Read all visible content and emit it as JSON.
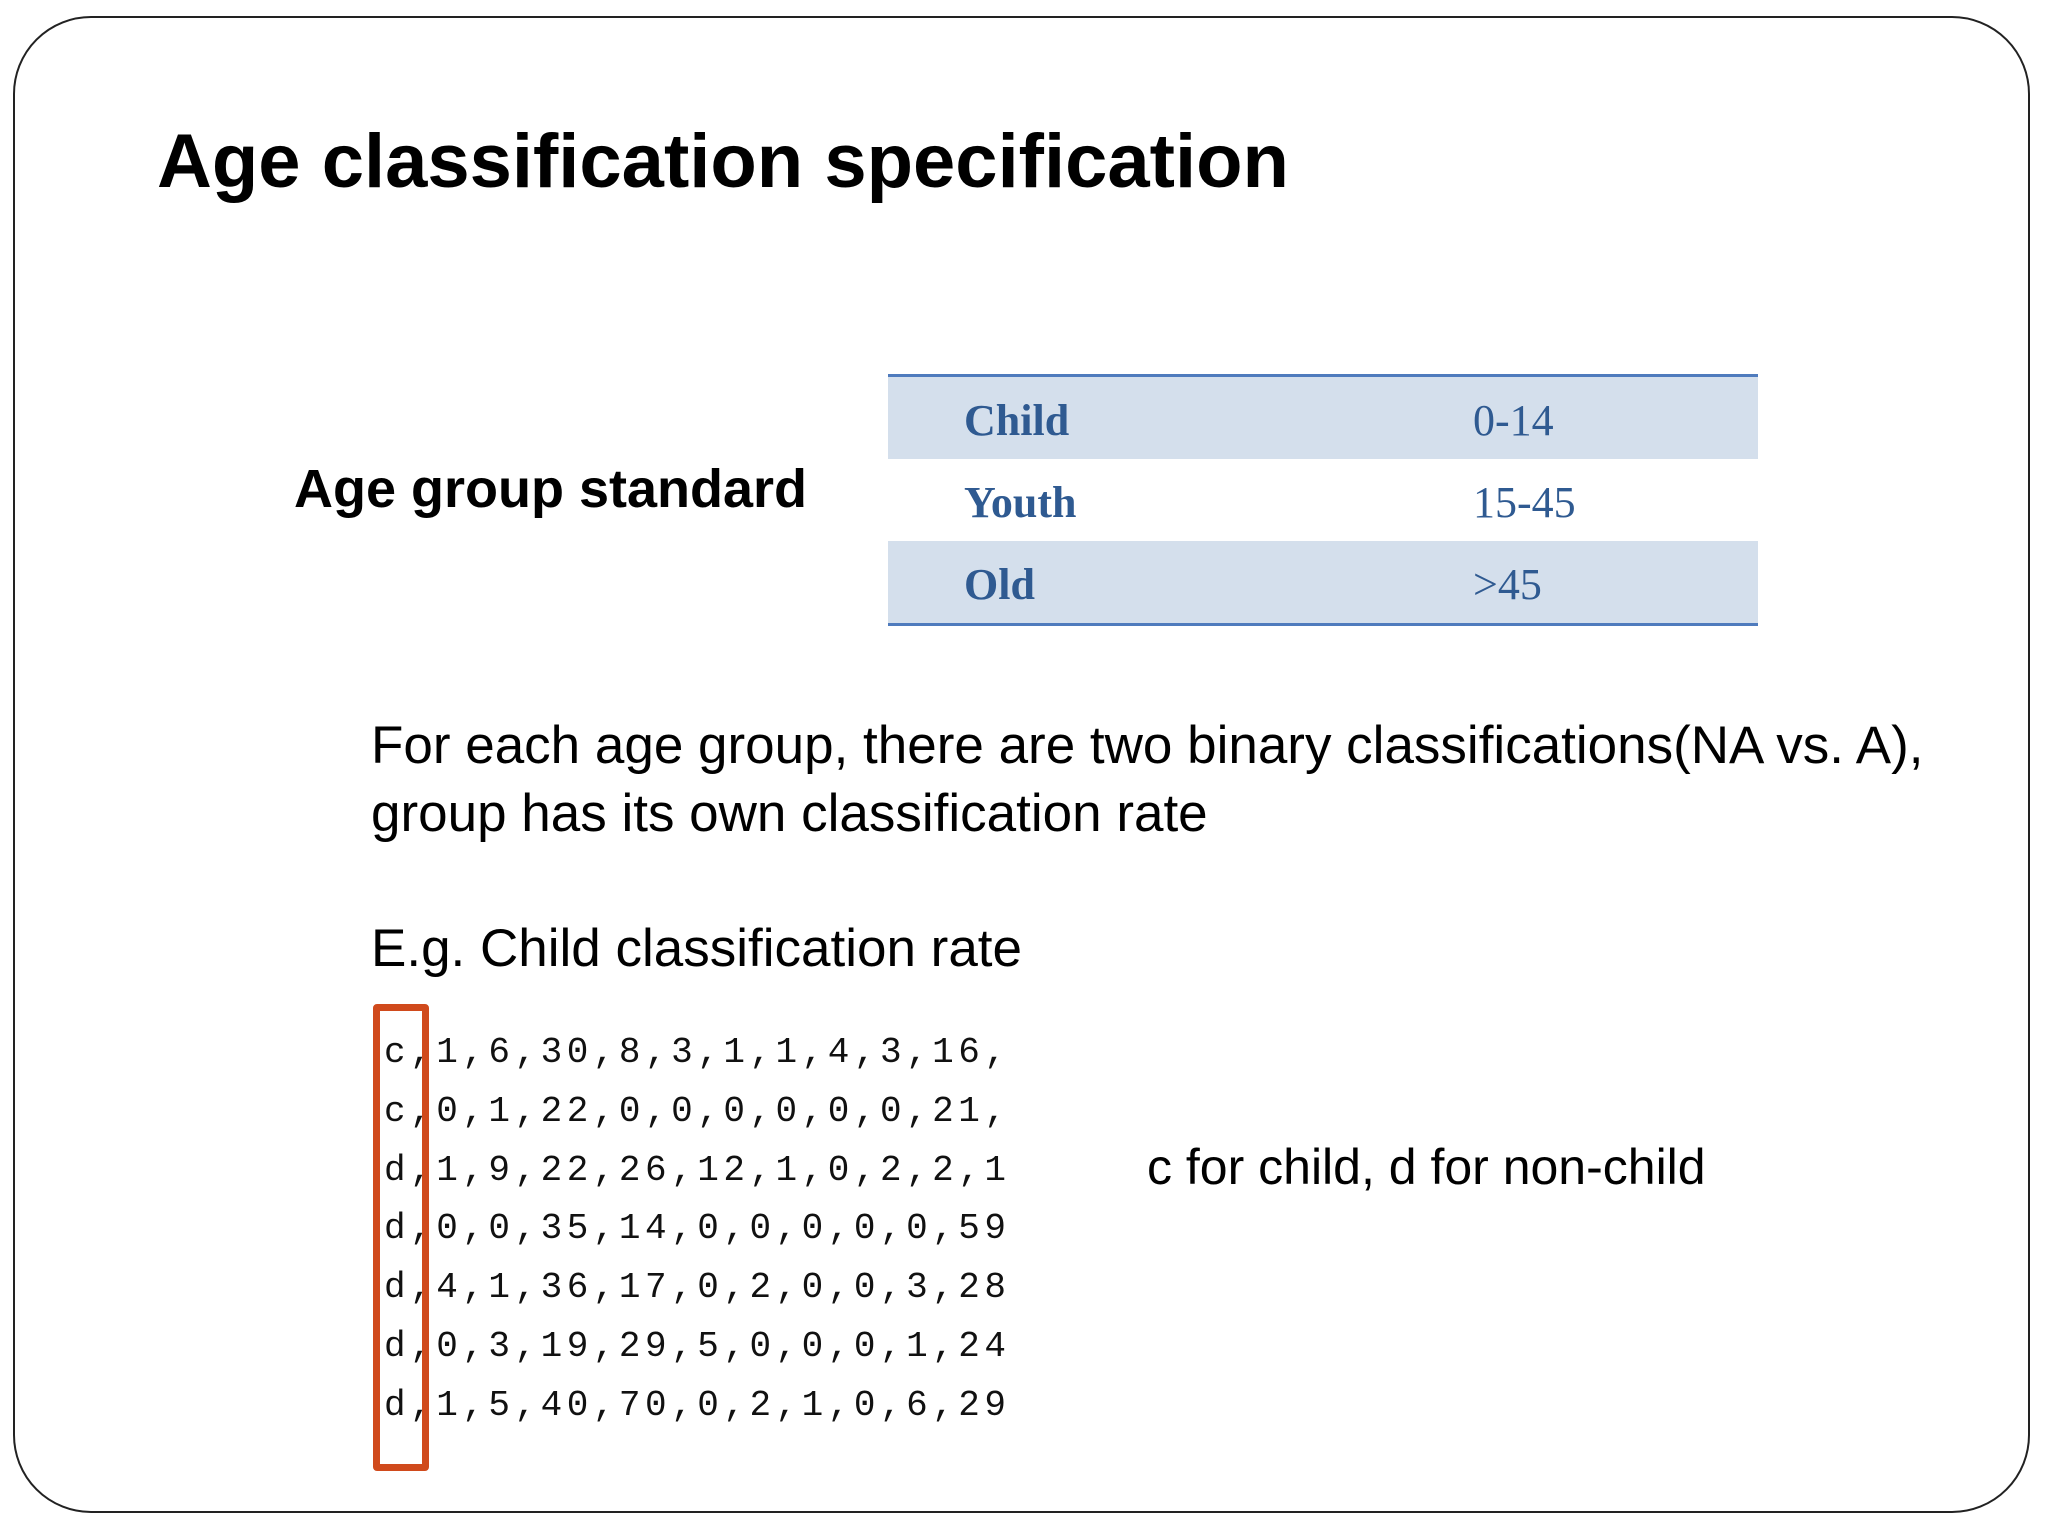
{
  "title": "Age classification specification",
  "age_group_label": "Age group standard",
  "table": {
    "rows": [
      {
        "group": "Child",
        "range": "0-14"
      },
      {
        "group": "Youth",
        "range": "15-45"
      },
      {
        "group": "Old",
        "range": ">45"
      }
    ],
    "colors": {
      "shade": "#d4dfec",
      "text": "#2f5a91",
      "rule": "#4f7bbd"
    }
  },
  "paragraph": {
    "line1": "For each age group, there are two binary classifications(NA vs. A),",
    "line2": "group has its own classification rate"
  },
  "example_heading": "E.g. Child classification rate",
  "data_lines": [
    "c,1,6,30,8,3,1,1,4,3,16,",
    "c,0,1,22,0,0,0,0,0,0,21,",
    "d,1,9,22,26,12,1,0,2,2,1",
    "d,0,0,35,14,0,0,0,0,0,59",
    "d,4,1,36,17,0,2,0,0,3,28",
    "d,0,3,19,29,5,0,0,0,1,24",
    "d,1,5,40,70,0,2,1,0,6,29"
  ],
  "highlight_color": "#d04a1c",
  "legend_note": "c for child, d for non-child"
}
